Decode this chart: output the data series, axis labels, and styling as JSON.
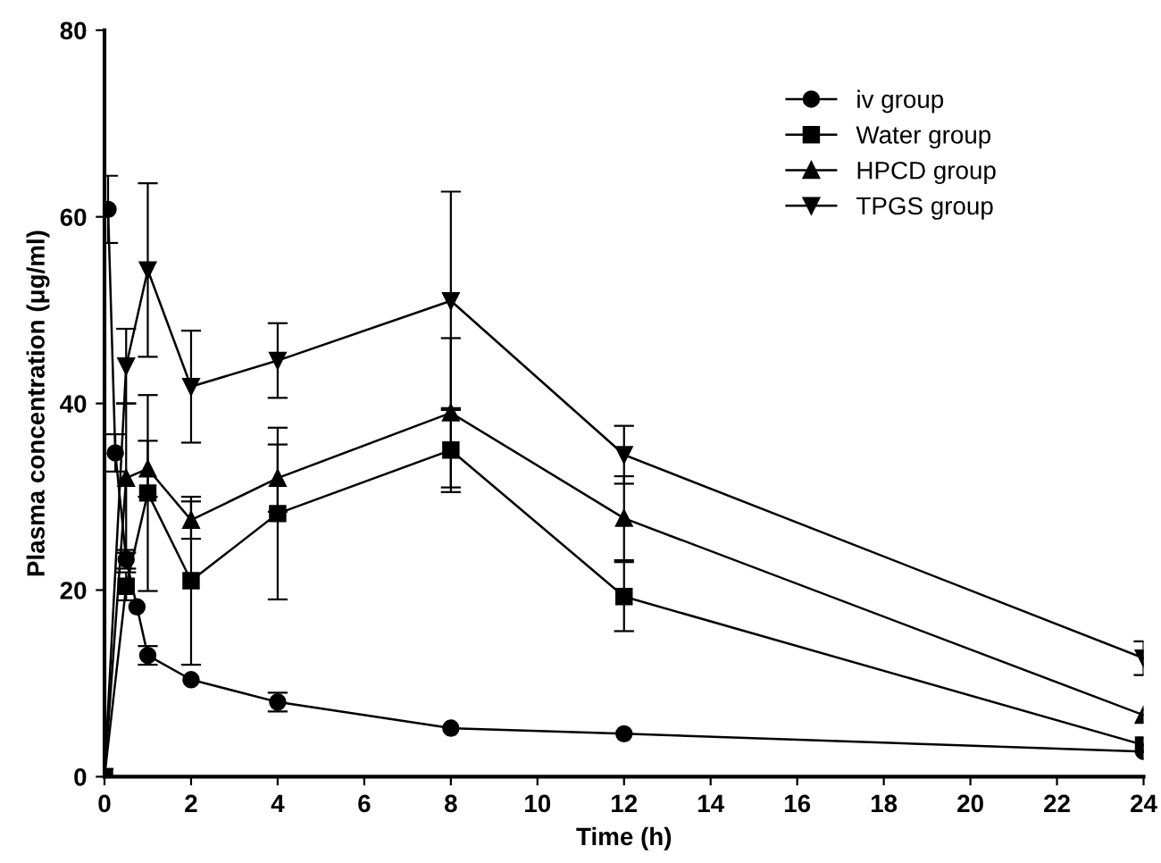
{
  "chart_data": {
    "type": "line",
    "xlabel": "Time (h)",
    "ylabel": "Plasma concentration (μg/ml)",
    "xlim": [
      0,
      24
    ],
    "ylim": [
      0,
      80
    ],
    "xticks": [
      0,
      2,
      4,
      6,
      8,
      10,
      12,
      14,
      16,
      18,
      20,
      22,
      24
    ],
    "yticks": [
      0,
      20,
      40,
      60,
      80
    ],
    "grid": false,
    "legend": "top right",
    "line_style": "solid",
    "series": [
      {
        "name": "iv group",
        "color": "#000000",
        "marker": "circle",
        "x": [
          0.083,
          0.25,
          0.5,
          0.75,
          1,
          2,
          4,
          8,
          12,
          24
        ],
        "values": [
          60.8,
          34.7,
          23.3,
          18.2,
          13,
          10.4,
          8,
          5.2,
          4.6,
          2.7
        ],
        "errors": [
          3.6,
          2,
          1,
          null,
          1,
          null,
          1,
          null,
          null,
          null
        ]
      },
      {
        "name": "Water group",
        "color": "#000000",
        "marker": "square",
        "x": [
          0,
          0.5,
          1,
          2,
          4,
          8,
          12,
          24
        ],
        "values": [
          0,
          20.4,
          30.4,
          21,
          28.2,
          35,
          19.3,
          3.4
        ],
        "errors": [
          null,
          1.5,
          10.5,
          9,
          9.2,
          4.5,
          3.7,
          null
        ]
      },
      {
        "name": "HPCD group",
        "color": "#000000",
        "marker": "triangle",
        "x": [
          0,
          0.5,
          1,
          2,
          4,
          8,
          12,
          24
        ],
        "values": [
          0,
          32,
          33,
          27.5,
          32,
          39,
          27.7,
          6.6
        ],
        "errors": [
          null,
          8,
          3,
          2,
          3.6,
          8,
          4.5,
          null
        ]
      },
      {
        "name": "TPGS group",
        "color": "#000000",
        "marker": "triangle_down",
        "x": [
          0,
          0.5,
          1,
          2,
          4,
          8,
          12,
          24
        ],
        "values": [
          0,
          44,
          54.3,
          41.8,
          44.6,
          51,
          34.5,
          12.7
        ],
        "errors": [
          null,
          4,
          9.3,
          6,
          4,
          11.7,
          3.1,
          1.8
        ]
      }
    ]
  }
}
